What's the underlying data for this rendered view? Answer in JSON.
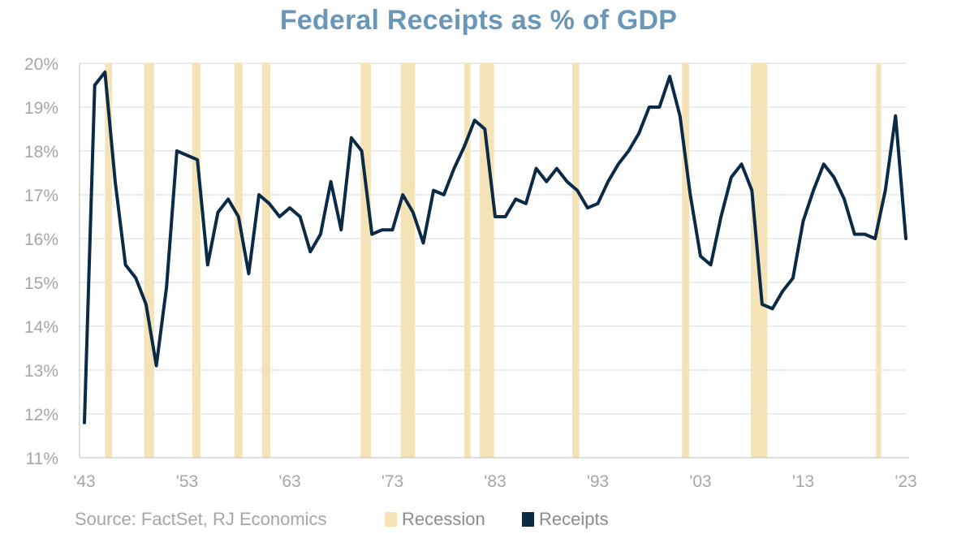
{
  "chart_data": {
    "type": "line",
    "title": "Federal Receipts as % of GDP",
    "source": "Source: FactSet, RJ Economics",
    "xlabel": "",
    "ylabel": "",
    "xlim": [
      1943,
      2023
    ],
    "ylim": [
      11,
      20
    ],
    "yticks": [
      11,
      12,
      13,
      14,
      15,
      16,
      17,
      18,
      19,
      20
    ],
    "ytick_labels": [
      "11%",
      "12%",
      "13%",
      "14%",
      "15%",
      "16%",
      "17%",
      "18%",
      "19%",
      "20%"
    ],
    "xticks": [
      1943,
      1953,
      1963,
      1973,
      1983,
      1993,
      2003,
      2013,
      2023
    ],
    "xtick_labels": [
      "'43",
      "'53",
      "'63",
      "'73",
      "'83",
      "'93",
      "'03",
      "'13",
      "'23"
    ],
    "grid": "horizontal",
    "legend_position": "bottom",
    "colors": {
      "title": "#6a97b8",
      "receipts": "#0b2a45",
      "recession": "#f5e3b8",
      "grid": "#d9d9d9",
      "axis_text": "#a6a6a6",
      "legend_text": "#8c8c8c"
    },
    "recession_periods": [
      [
        1945.0,
        1945.7
      ],
      [
        1948.8,
        1949.8
      ],
      [
        1953.5,
        1954.3
      ],
      [
        1957.6,
        1958.4
      ],
      [
        1960.3,
        1961.1
      ],
      [
        1969.9,
        1970.9
      ],
      [
        1973.8,
        1975.2
      ],
      [
        1980.0,
        1980.6
      ],
      [
        1981.5,
        1982.9
      ],
      [
        1990.5,
        1991.2
      ],
      [
        2001.2,
        2001.9
      ],
      [
        2007.9,
        2009.5
      ],
      [
        2020.1,
        2020.6
      ]
    ],
    "series": [
      {
        "name": "Receipts",
        "x": [
          1943,
          1944,
          1945,
          1946,
          1947,
          1948,
          1949,
          1950,
          1951,
          1952,
          1953,
          1954,
          1955,
          1956,
          1957,
          1958,
          1959,
          1960,
          1961,
          1962,
          1963,
          1964,
          1965,
          1966,
          1967,
          1968,
          1969,
          1970,
          1971,
          1972,
          1973,
          1974,
          1975,
          1976,
          1977,
          1978,
          1979,
          1980,
          1981,
          1982,
          1983,
          1984,
          1985,
          1986,
          1987,
          1988,
          1989,
          1990,
          1991,
          1992,
          1993,
          1994,
          1995,
          1996,
          1997,
          1998,
          1999,
          2000,
          2001,
          2002,
          2003,
          2004,
          2005,
          2006,
          2007,
          2008,
          2009,
          2010,
          2011,
          2012,
          2013,
          2014,
          2015,
          2016,
          2017,
          2018,
          2019,
          2020,
          2021,
          2022,
          2023
        ],
        "values": [
          11.8,
          19.5,
          19.8,
          17.3,
          15.4,
          15.1,
          14.5,
          13.1,
          14.9,
          18.0,
          17.9,
          17.8,
          15.4,
          16.6,
          16.9,
          16.5,
          15.2,
          17.0,
          16.8,
          16.5,
          16.7,
          16.5,
          15.7,
          16.1,
          17.3,
          16.2,
          18.3,
          18.0,
          16.1,
          16.2,
          16.2,
          17.0,
          16.6,
          15.9,
          17.1,
          17.0,
          17.6,
          18.1,
          18.7,
          18.5,
          16.5,
          16.5,
          16.9,
          16.8,
          17.6,
          17.3,
          17.6,
          17.3,
          17.1,
          16.7,
          16.8,
          17.3,
          17.7,
          18.0,
          18.4,
          19.0,
          19.0,
          19.7,
          18.8,
          17.0,
          15.6,
          15.4,
          16.5,
          17.4,
          17.7,
          17.1,
          14.5,
          14.4,
          14.8,
          15.1,
          16.4,
          17.1,
          17.7,
          17.4,
          16.9,
          16.1,
          16.1,
          16.0,
          17.1,
          18.8,
          16.0
        ]
      }
    ],
    "legend": [
      {
        "name": "Recession",
        "swatch_color": "#f5e3b8"
      },
      {
        "name": "Receipts",
        "swatch_color": "#0b2a45"
      }
    ]
  }
}
